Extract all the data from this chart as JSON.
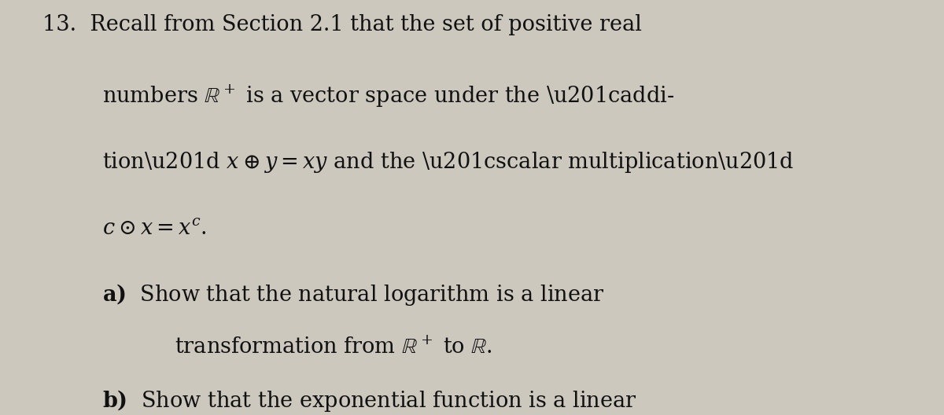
{
  "background_color": "#ccc8be",
  "text_color": "#111111",
  "figsize": [
    12.0,
    5.28
  ],
  "dpi": 100,
  "font_size": 19.5
}
